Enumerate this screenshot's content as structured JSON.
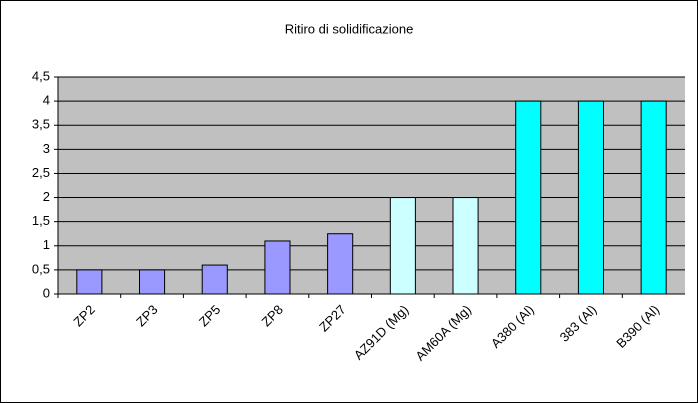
{
  "chart_data": {
    "type": "bar",
    "title": "Ritiro di solidificazione",
    "categories": [
      "ZP2",
      "ZP3",
      "ZP5",
      "ZP8",
      "ZP27",
      "AZ91D (Mg)",
      "AM60A (Mg)",
      "A380 (Al)",
      "383 (Al)",
      "B390 (Al)"
    ],
    "values": [
      0.5,
      0.5,
      0.6,
      1.1,
      1.25,
      2,
      2,
      4,
      4,
      4
    ],
    "colors": [
      "#9999ff",
      "#9999ff",
      "#9999ff",
      "#9999ff",
      "#9999ff",
      "#ccffff",
      "#ccffff",
      "#00ffff",
      "#00ffff",
      "#00ffff"
    ],
    "ylim": [
      0,
      4.5
    ],
    "yticks": [
      0,
      {
        "value": 0.5,
        "label": "0,5"
      },
      1,
      {
        "value": 1.5,
        "label": "1,5"
      },
      2,
      {
        "value": 2.5,
        "label": "2,5"
      },
      3,
      {
        "value": 3.5,
        "label": "3,5"
      },
      4,
      {
        "value": 4.5,
        "label": "4,5"
      }
    ],
    "grid": true
  }
}
